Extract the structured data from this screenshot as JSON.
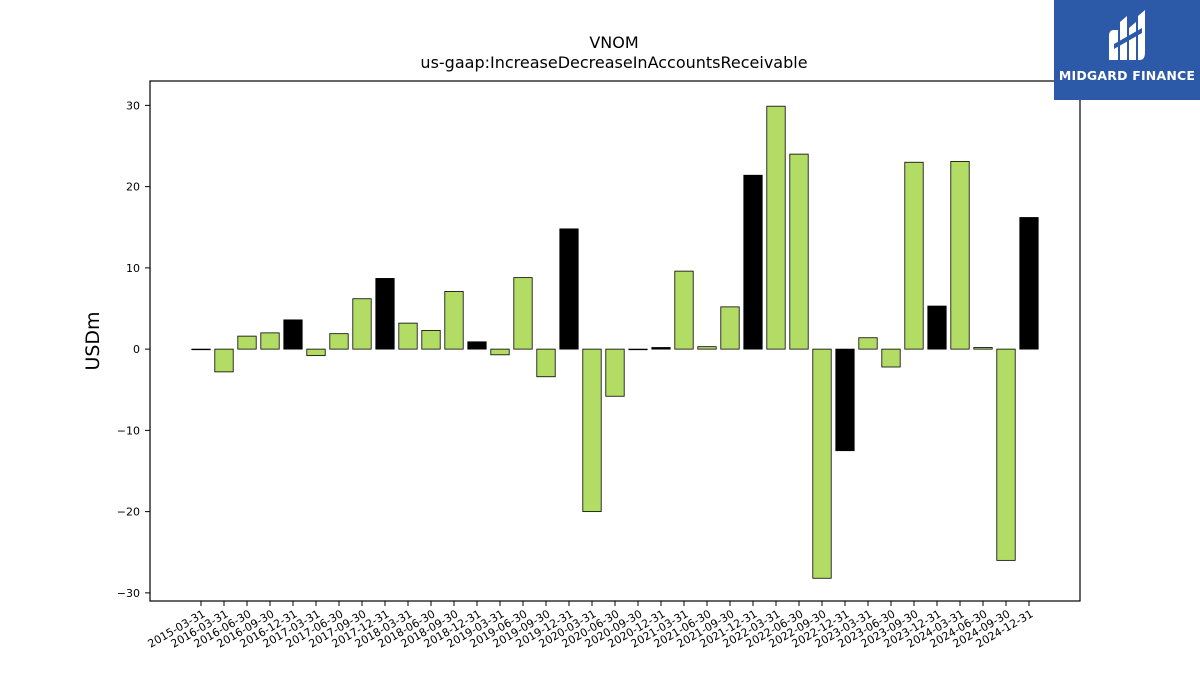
{
  "chart_data": {
    "type": "bar",
    "title": "VNOM",
    "subtitle": "us-gaap:IncreaseDecreaseInAccountsReceivable",
    "xlabel": "",
    "ylabel": "USDm",
    "ylim": [
      -31,
      33
    ],
    "yticks": [
      -30,
      -20,
      -10,
      0,
      10,
      20,
      30
    ],
    "ytick_labels": [
      "−30",
      "−20",
      "−10",
      "0",
      "10",
      "20",
      "30"
    ],
    "grid": false,
    "colors": {
      "quarterly": "#b3dc65",
      "annual": "#000000",
      "edge": "#000000"
    },
    "categories": [
      "2015-03-31",
      "2016-03-31",
      "2016-06-30",
      "2016-09-30",
      "2016-12-31",
      "2017-03-31",
      "2017-06-30",
      "2017-09-30",
      "2017-12-31",
      "2018-03-31",
      "2018-06-30",
      "2018-09-30",
      "2018-12-31",
      "2019-03-31",
      "2019-06-30",
      "2019-09-30",
      "2019-12-31",
      "2020-03-31",
      "2020-06-30",
      "2020-09-30",
      "2020-12-31",
      "2021-03-31",
      "2021-06-30",
      "2021-09-30",
      "2021-12-31",
      "2022-03-31",
      "2022-06-30",
      "2022-09-30",
      "2022-12-31",
      "2023-03-31",
      "2023-06-30",
      "2023-09-30",
      "2023-12-31",
      "2024-03-31",
      "2024-06-30",
      "2024-09-30",
      "2024-12-31"
    ],
    "values": [
      0.0,
      -2.8,
      1.6,
      2.0,
      3.6,
      -0.8,
      1.9,
      6.2,
      8.7,
      3.2,
      2.3,
      7.1,
      0.9,
      -0.7,
      8.8,
      -3.4,
      14.8,
      -20.0,
      -5.8,
      0.0,
      0.2,
      9.6,
      0.3,
      5.2,
      21.4,
      29.9,
      24.0,
      -28.2,
      -12.5,
      1.4,
      -2.2,
      23.0,
      5.3,
      23.1,
      0.2,
      -26.0,
      16.2
    ],
    "bar_color_keys": [
      "quarterly",
      "quarterly",
      "quarterly",
      "quarterly",
      "annual",
      "quarterly",
      "quarterly",
      "quarterly",
      "annual",
      "quarterly",
      "quarterly",
      "quarterly",
      "annual",
      "quarterly",
      "quarterly",
      "quarterly",
      "annual",
      "quarterly",
      "quarterly",
      "quarterly",
      "annual",
      "quarterly",
      "quarterly",
      "quarterly",
      "annual",
      "quarterly",
      "quarterly",
      "quarterly",
      "annual",
      "quarterly",
      "quarterly",
      "quarterly",
      "annual",
      "quarterly",
      "quarterly",
      "quarterly",
      "annual"
    ]
  },
  "logo": {
    "text": "MIDGARD FINANCE",
    "icon": "midgard-logo-icon"
  }
}
